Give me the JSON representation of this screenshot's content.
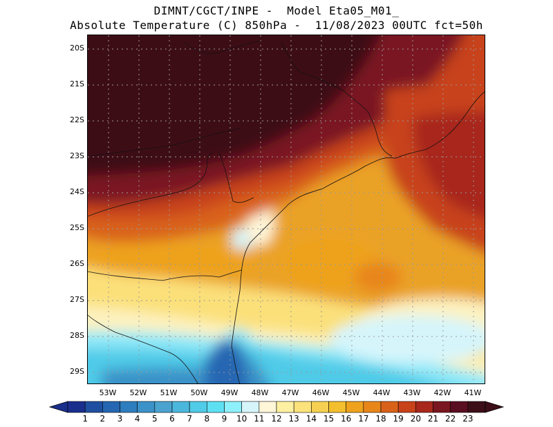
{
  "title_line1": "DIMNT/CGCT/INPE -  Model Eta05_M01_",
  "title_line2": "Absolute Temperature (C) 850hPa -  11/08/2023 00UTC fct=50h",
  "lat_labels": [
    "20S",
    "21S",
    "22S",
    "23S",
    "24S",
    "25S",
    "26S",
    "27S",
    "28S",
    "29S"
  ],
  "lon_labels": [
    "53W",
    "52W",
    "51W",
    "50W",
    "49W",
    "48W",
    "47W",
    "46W",
    "45W",
    "44W",
    "43W",
    "42W",
    "41W"
  ],
  "colorbar": {
    "labels": [
      "1",
      "2",
      "3",
      "4",
      "5",
      "6",
      "7",
      "8",
      "9",
      "10",
      "11",
      "12",
      "13",
      "14",
      "15",
      "16",
      "17",
      "18",
      "19",
      "20",
      "21",
      "22",
      "23"
    ],
    "colors": [
      "#1a2f8c",
      "#1f4fa0",
      "#2566b2",
      "#2e7dbe",
      "#3b92c8",
      "#4aa3cf",
      "#4cb7dc",
      "#50cbe8",
      "#5ee0f3",
      "#8ef0fa",
      "#d6f5fb",
      "#fff6d8",
      "#fdf0a0",
      "#fbe27a",
      "#f6d052",
      "#f3bf2e",
      "#eea21e",
      "#e8861a",
      "#d9621a",
      "#c8421a",
      "#a8281c",
      "#7a1620",
      "#5a0e22",
      "#3c0e18"
    ]
  }
}
